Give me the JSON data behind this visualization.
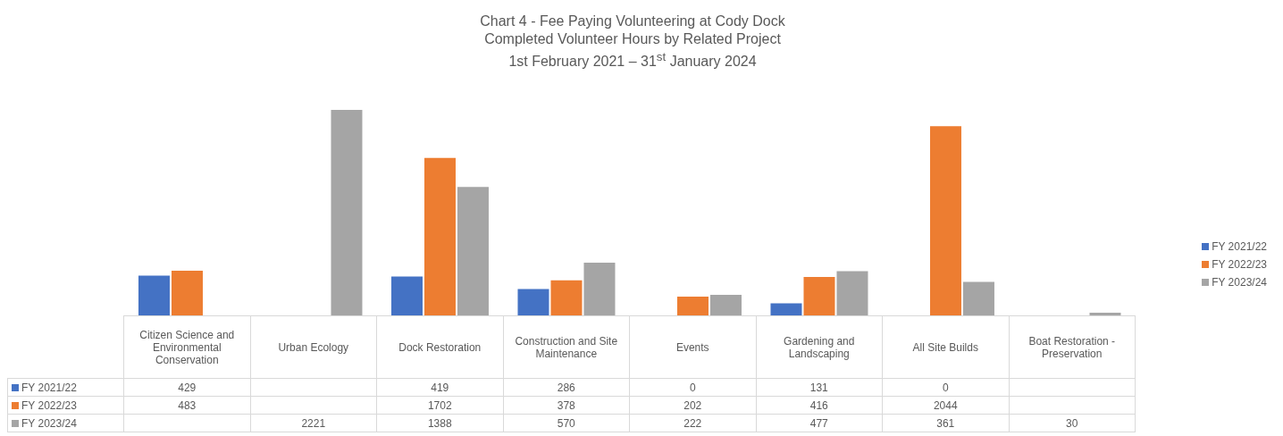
{
  "chart_data": {
    "type": "bar",
    "title": "Chart 4 - Fee Paying Volunteering at Cody Dock",
    "subtitle": "Completed Volunteer Hours by Related Project\n1st February 2021 – 31$^{st}$ January 2024",
    "categories": [
      "Citizen Science and Environmental Conservation",
      "Urban Ecology",
      "Dock Restoration",
      "Construction and Site Maintenance",
      "Events",
      "Gardening and Landscaping",
      "All Site Builds",
      "Boat Restoration - Preservation"
    ],
    "series": [
      {
        "name": "FY 2021/22",
        "color": "#4472c4",
        "values": [
          429,
          null,
          419,
          286,
          0,
          131,
          0,
          null
        ]
      },
      {
        "name": "FY 2022/23",
        "color": "#ed7d31",
        "values": [
          483,
          null,
          1702,
          378,
          202,
          416,
          2044,
          null
        ]
      },
      {
        "name": "FY 2023/24",
        "color": "#a5a5a5",
        "values": [
          null,
          2221,
          1388,
          570,
          222,
          477,
          361,
          30
        ]
      }
    ],
    "data_labels": true,
    "grid": false,
    "legend": "right"
  }
}
